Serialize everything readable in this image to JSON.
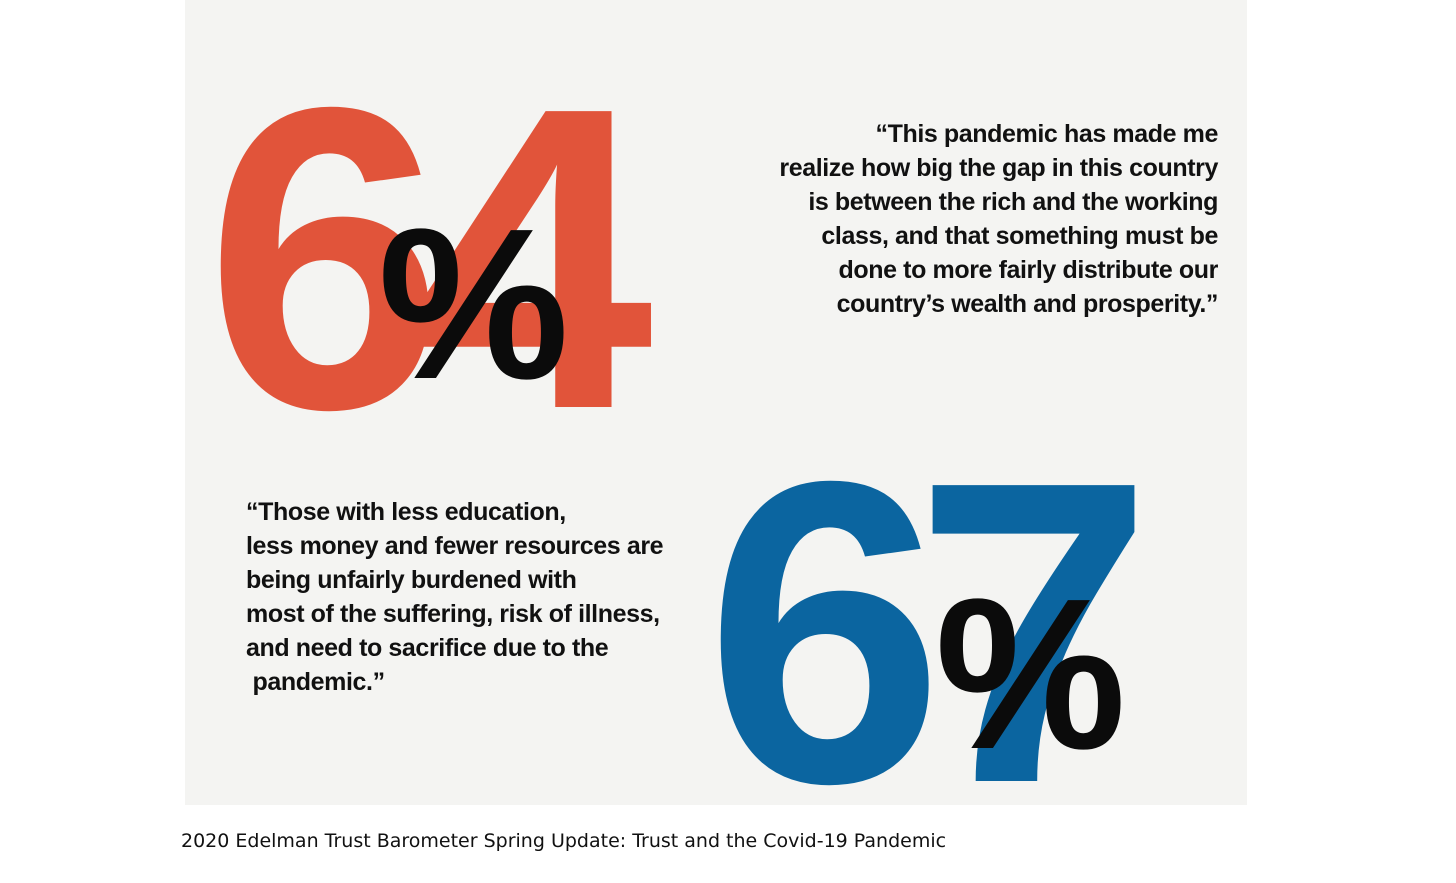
{
  "colors": {
    "stat_1": "#e1543a",
    "stat_2": "#0b65a0",
    "percent": "#0b0b0b",
    "background": "#f4f4f2"
  },
  "stat_1": {
    "number": "64",
    "percent": "%",
    "quote_lines": [
      "“This pandemic has made me",
      "realize how big the gap in this country",
      "is between the rich and the working",
      "class, and that something must be",
      "done to more fairly distribute our",
      "country’s wealth and prosperity.”"
    ]
  },
  "stat_2": {
    "number": "67",
    "percent": "%",
    "quote_lines": [
      "“Those with less education,",
      "less money and fewer resources are",
      "being unfairly burdened with",
      "most of the suffering, risk of illness,",
      "and need to sacrifice due to the",
      " pandemic.”"
    ]
  },
  "caption": "2020 Edelman Trust Barometer Spring Update: Trust and the Covid-19 Pandemic"
}
